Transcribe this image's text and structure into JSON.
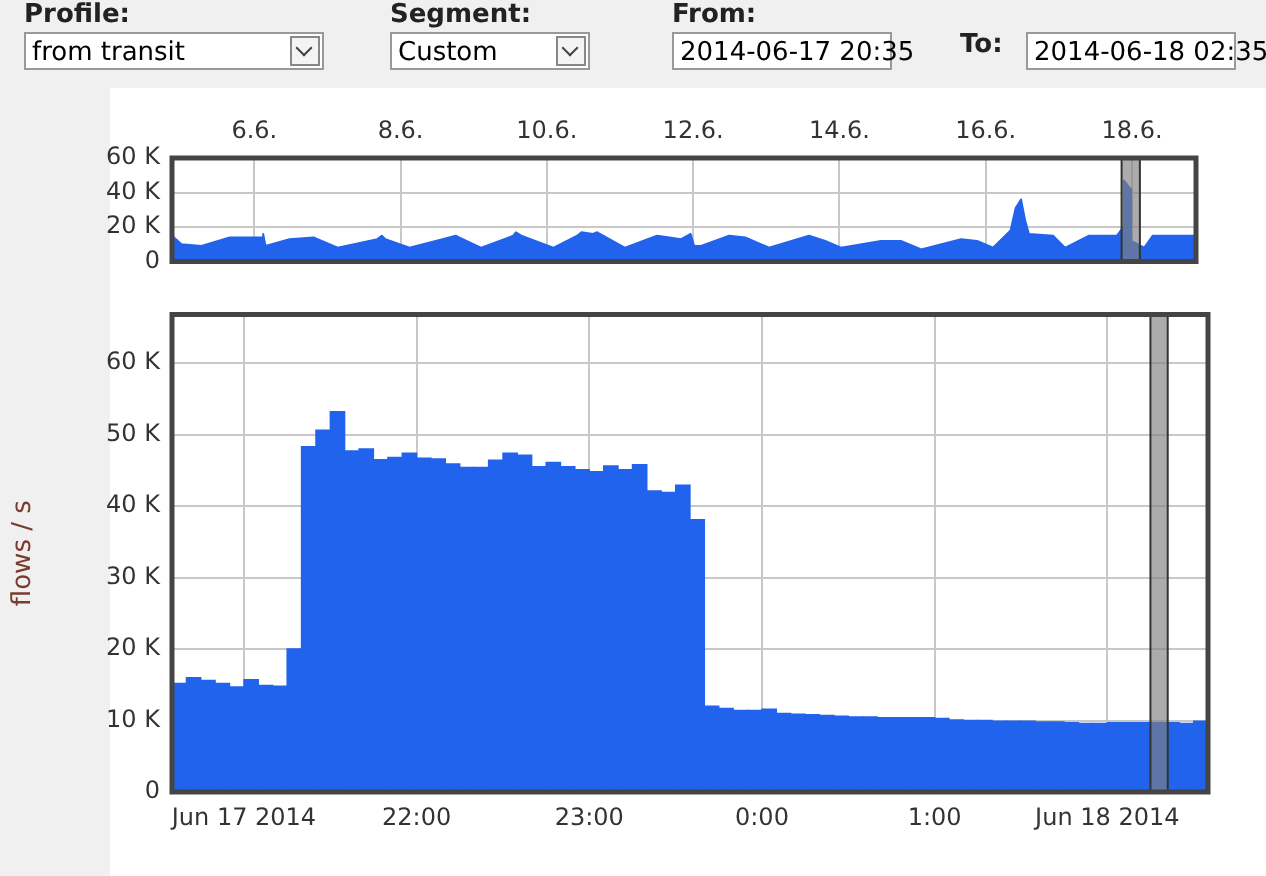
{
  "chart_data": [
    {
      "type": "area",
      "annotations": [
        "Profile:",
        "from transit",
        "Segment:",
        "Custom",
        "From:",
        "2014-06-17 20:35",
        "To:",
        "2014-06-18 02:35"
      ],
      "x": [
        "2014-06-04T21:00",
        "2014-06-05T00:05",
        "2014-06-05T06:40",
        "2014-06-05T15:55",
        "2014-06-05T22:25",
        "2014-06-06T02:50",
        "2014-06-06T02:55",
        "2014-06-06T03:40",
        "2014-06-06T11:35",
        "2014-06-06T19:25",
        "2014-06-07T03:20",
        "2014-06-07T16:25",
        "2014-06-07T17:50",
        "2014-06-07T19:00",
        "2014-06-08T02:55",
        "2014-06-08T16:00",
        "2014-06-08T18:05",
        "2014-06-08T19:10",
        "2014-06-09T02:30",
        "2014-06-09T13:00",
        "2014-06-09T13:50",
        "2014-06-09T15:35",
        "2014-06-10T02:05",
        "2014-06-10T10:00",
        "2014-06-10T11:20",
        "2014-06-10T15:10",
        "2014-06-10T16:30",
        "2014-06-10T20:30",
        "2014-06-11T01:40",
        "2014-06-11T12:10",
        "2014-06-11T20:05",
        "2014-06-11T23:10",
        "2014-06-12T00:20",
        "2014-06-12T02:35",
        "2014-06-12T11:50",
        "2014-06-12T17:05",
        "2014-06-13T00:55",
        "2014-06-13T14:00",
        "2014-06-13T19:20",
        "2014-06-14T00:30",
        "2014-06-14T13:40",
        "2014-06-14T20:10",
        "2014-06-15T02:50",
        "2014-06-15T15:55",
        "2014-06-15T21:10",
        "2014-06-16T02:25",
        "2014-06-16T08:10",
        "2014-06-16T09:50",
        "2014-06-16T11:35",
        "2014-06-16T12:55",
        "2014-06-16T14:10",
        "2014-06-16T22:05",
        "2014-06-17T02:00",
        "2014-06-17T09:55",
        "2014-06-17T19:05",
        "2014-06-17T21:10",
        "2014-06-17T21:20",
        "2014-06-17T23:30",
        "2014-06-17T23:45",
        "2014-06-18T02:00",
        "2014-06-18T04:00",
        "2014-06-18T06:50",
        "2014-06-18T21:00"
      ],
      "series": [
        {
          "color": "#2163ec",
          "values": [
            15000,
            10000,
            9000,
            14000,
            14000,
            14000,
            16000,
            9000,
            13000,
            14000,
            8000,
            13000,
            15000,
            13000,
            8000,
            14000,
            15000,
            14000,
            8000,
            15000,
            17000,
            15000,
            8000,
            15000,
            17000,
            16000,
            17000,
            13000,
            8000,
            15000,
            13000,
            16000,
            9000,
            9000,
            15000,
            14000,
            8000,
            15000,
            12000,
            8000,
            12000,
            12000,
            7000,
            13000,
            12000,
            8000,
            18000,
            31000,
            36000,
            24000,
            16000,
            15000,
            8000,
            15000,
            15000,
            20000,
            47000,
            42000,
            12000,
            10000,
            8000,
            15000,
            15000
          ]
        }
      ],
      "xlim": [
        "2014-06-04T21:00",
        "2014-06-18T21:00"
      ],
      "xticks": [
        {
          "value": "2014-06-06",
          "label": "6.6."
        },
        {
          "value": "2014-06-08",
          "label": "8.6."
        },
        {
          "value": "2014-06-10",
          "label": "10.6."
        },
        {
          "value": "2014-06-12",
          "label": "12.6."
        },
        {
          "value": "2014-06-14",
          "label": "14.6."
        },
        {
          "value": "2014-06-16",
          "label": "16.6."
        },
        {
          "value": "2014-06-18",
          "label": "18.6."
        }
      ],
      "ylim": [
        0,
        60000
      ],
      "yticks": [
        0,
        {
          "value": 20000,
          "label": "20 K"
        },
        {
          "value": 40000,
          "label": "40 K"
        },
        {
          "value": 60000,
          "label": "60 K"
        }
      ],
      "bands": [
        {
          "axis": "x",
          "from": "2014-06-17T20:35",
          "to": "2014-06-18T02:35",
          "color": "#808080"
        }
      ],
      "grid": true
    },
    {
      "type": "histogram",
      "ylabel": "flows / s",
      "bins": [
        "2014-06-17T20:35",
        "2014-06-17T20:40",
        "2014-06-17T20:45",
        "2014-06-17T20:50",
        "2014-06-17T20:55",
        "2014-06-17T21:00",
        "2014-06-17T21:05",
        "2014-06-17T21:10",
        "2014-06-17T21:15",
        "2014-06-17T21:20",
        "2014-06-17T21:25",
        "2014-06-17T21:30",
        "2014-06-17T21:35",
        "2014-06-17T21:40",
        "2014-06-17T21:45",
        "2014-06-17T21:50",
        "2014-06-17T21:55",
        "2014-06-17T22:00",
        "2014-06-17T22:05",
        "2014-06-17T22:10",
        "2014-06-17T22:15",
        "2014-06-17T22:20",
        "2014-06-17T22:25",
        "2014-06-17T22:30",
        "2014-06-17T22:35",
        "2014-06-17T22:40",
        "2014-06-17T22:45",
        "2014-06-17T22:50",
        "2014-06-17T22:55",
        "2014-06-17T23:00",
        "2014-06-17T23:05",
        "2014-06-17T23:10",
        "2014-06-17T23:15",
        "2014-06-17T23:20",
        "2014-06-17T23:25",
        "2014-06-17T23:30",
        "2014-06-17T23:35",
        "2014-06-17T23:40",
        "2014-06-17T23:45",
        "2014-06-17T23:50",
        "2014-06-17T23:55",
        "2014-06-18T00:00",
        "2014-06-18T00:05",
        "2014-06-18T00:10",
        "2014-06-18T00:15",
        "2014-06-18T00:20",
        "2014-06-18T00:25",
        "2014-06-18T00:30",
        "2014-06-18T00:35",
        "2014-06-18T00:40",
        "2014-06-18T00:45",
        "2014-06-18T00:50",
        "2014-06-18T00:55",
        "2014-06-18T01:00",
        "2014-06-18T01:05",
        "2014-06-18T01:10",
        "2014-06-18T01:15",
        "2014-06-18T01:20",
        "2014-06-18T01:25",
        "2014-06-18T01:30",
        "2014-06-18T01:35",
        "2014-06-18T01:40",
        "2014-06-18T01:45",
        "2014-06-18T01:50",
        "2014-06-18T01:55",
        "2014-06-18T02:00",
        "2014-06-18T02:05",
        "2014-06-18T02:10",
        "2014-06-18T02:15",
        "2014-06-18T02:20",
        "2014-06-18T02:25",
        "2014-06-18T02:30",
        "2014-06-18T02:35"
      ],
      "series": [
        {
          "color": "#2163ec",
          "values": [
            15200,
            16000,
            15600,
            15200,
            14700,
            15700,
            14900,
            14800,
            20000,
            48300,
            50600,
            53200,
            47700,
            48000,
            46500,
            46800,
            47400,
            46700,
            46600,
            45900,
            45400,
            45400,
            46400,
            47400,
            47100,
            45500,
            46100,
            45500,
            45100,
            44800,
            45600,
            45100,
            45800,
            42100,
            41900,
            42900,
            38100,
            12000,
            11700,
            11400,
            11400,
            11600,
            11000,
            10900,
            10800,
            10700,
            10600,
            10500,
            10500,
            10400,
            10400,
            10400,
            10400,
            10300,
            10100,
            10000,
            10000,
            9900,
            9900,
            9900,
            9800,
            9800,
            9700,
            9600,
            9600,
            9700,
            9700,
            9700,
            9700,
            9700,
            9600,
            9900
          ]
        }
      ],
      "xlim": [
        "2014-06-17T20:35",
        "2014-06-18T02:35"
      ],
      "xticks": [
        {
          "value": "2014-06-17T21:00",
          "label": "Jun 17 2014"
        },
        {
          "value": "2014-06-17T22:00",
          "label": "22:00"
        },
        {
          "value": "2014-06-17T23:00",
          "label": "23:00"
        },
        {
          "value": "2014-06-18T00:00",
          "label": "0:00"
        },
        {
          "value": "2014-06-18T01:00",
          "label": "1:00"
        },
        {
          "value": "2014-06-18T02:00",
          "label": "Jun 18 2014"
        }
      ],
      "ylim": [
        0,
        66800
      ],
      "yticks": [
        0,
        {
          "value": 10000,
          "label": "10 K"
        },
        {
          "value": 20000,
          "label": "20 K"
        },
        {
          "value": 30000,
          "label": "30 K"
        },
        {
          "value": 40000,
          "label": "40 K"
        },
        {
          "value": 50000,
          "label": "50 K"
        },
        {
          "value": 60000,
          "label": "60 K"
        }
      ],
      "bands": [
        {
          "axis": "x",
          "from": "2014-06-18T02:15",
          "to": "2014-06-18T02:21",
          "color": "#808080"
        }
      ],
      "grid": true
    }
  ]
}
